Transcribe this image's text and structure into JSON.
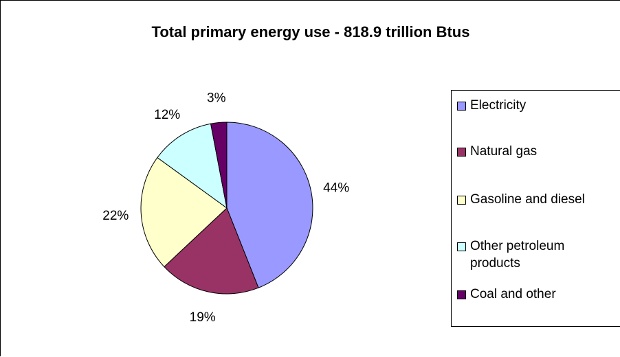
{
  "chart_data": {
    "type": "pie",
    "title": "Total primary energy use - 818.9 trillion Btus",
    "categories": [
      "Electricity",
      "Natural gas",
      "Gasoline and diesel",
      "Other petroleum products",
      "Coal and other"
    ],
    "values": [
      44,
      19,
      22,
      12,
      3
    ],
    "value_labels": [
      "44%",
      "19%",
      "22%",
      "12%",
      "3%"
    ],
    "colors": [
      "#9999ff",
      "#993366",
      "#ffffcc",
      "#ccffff",
      "#660066"
    ],
    "legend_position": "right"
  }
}
